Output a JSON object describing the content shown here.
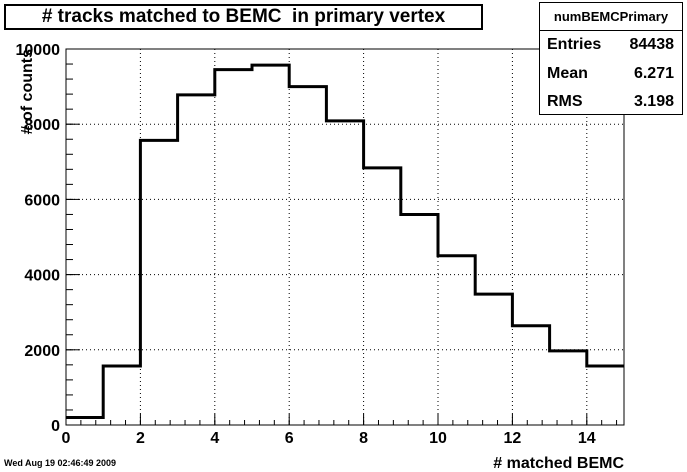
{
  "chart_data": {
    "type": "histogram",
    "title": "# tracks matched to BEMC  in primary vertex",
    "xlabel": "# matched BEMC",
    "ylabel": "# of counts",
    "xlim": [
      0,
      15
    ],
    "ylim": [
      0,
      10000
    ],
    "grid": true,
    "bin_edges": [
      0,
      1,
      2,
      3,
      4,
      5,
      6,
      7,
      8,
      9,
      10,
      11,
      12,
      13,
      14,
      15
    ],
    "values": [
      200,
      1570,
      7570,
      8780,
      9450,
      9570,
      9000,
      8090,
      6840,
      5600,
      4500,
      3480,
      2640,
      1970,
      1570
    ],
    "x_ticks": [
      "0",
      "2",
      "4",
      "6",
      "8",
      "10",
      "12",
      "14"
    ],
    "y_ticks": [
      "0",
      "2000",
      "4000",
      "6000",
      "8000",
      "10000"
    ],
    "stats": {
      "name": "numBEMCPrimary",
      "entries_label": "Entries",
      "entries": "84438",
      "mean_label": "Mean",
      "mean": "6.271",
      "rms_label": "RMS",
      "rms": "3.198"
    }
  },
  "footer": {
    "date": "Wed Aug 19 02:46:49 2009"
  }
}
